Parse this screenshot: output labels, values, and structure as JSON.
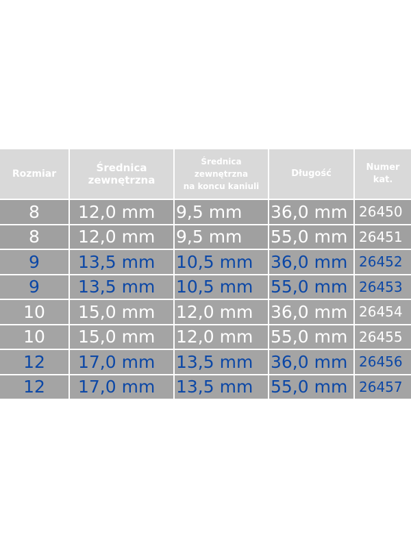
{
  "headers": [
    "Rozmiar",
    "Średnica zewnętrzna",
    "Średnica zewnętrzna na koncu kaniuli",
    "Długość",
    "Numer kat."
  ],
  "header_lines": [
    [
      "Rozmiar"
    ],
    [
      "Średnica",
      "zewnętrzna"
    ],
    [
      "Średnica",
      "zewnętrzna",
      "na koncu kaniuli"
    ],
    [
      "Długość"
    ],
    [
      "Numer",
      "kat."
    ]
  ],
  "colors": {
    "header_bg": "#d9d9d9",
    "row_bg": "#a4a4a4",
    "text_white": "#ffffff",
    "text_blue": "#0b47a6"
  },
  "rows": [
    {
      "color": "white",
      "cells": [
        "8",
        "12,0 mm",
        "9,5 mm",
        "36,0 mm",
        "26450"
      ]
    },
    {
      "color": "white",
      "cells": [
        "8",
        "12,0 mm",
        "9,5 mm",
        "55,0 mm",
        "26451"
      ]
    },
    {
      "color": "blue",
      "cells": [
        "9",
        "13,5 mm",
        "10,5 mm",
        "36,0 mm",
        "26452"
      ]
    },
    {
      "color": "blue",
      "cells": [
        "9",
        "13,5 mm",
        "10,5 mm",
        "55,0 mm",
        "26453"
      ]
    },
    {
      "color": "white",
      "cells": [
        "10",
        "15,0 mm",
        "12,0 mm",
        "36,0 mm",
        "26454"
      ]
    },
    {
      "color": "white",
      "cells": [
        "10",
        "15,0 mm",
        "12,0 mm",
        "55,0 mm",
        "26455"
      ]
    },
    {
      "color": "blue",
      "cells": [
        "12",
        "17,0 mm",
        "13,5 mm",
        "36,0 mm",
        "26456"
      ]
    },
    {
      "color": "blue",
      "cells": [
        "12",
        "17,0 mm",
        "13,5 mm",
        "55,0 mm",
        "26457"
      ]
    }
  ]
}
